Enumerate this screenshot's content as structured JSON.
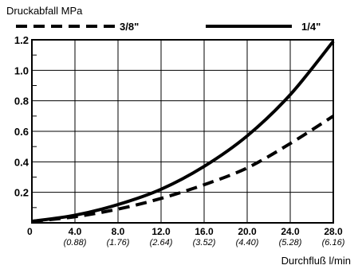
{
  "chart_data": {
    "type": "line",
    "ylabel": "Druckabfall MPa",
    "xlabel": "Durchfluß l/min",
    "xlim": [
      0,
      28
    ],
    "ylim": [
      0,
      1.2
    ],
    "x_ticks": [
      0,
      4,
      8,
      12,
      16,
      20,
      24,
      28
    ],
    "x_tick_labels": [
      "0",
      "4.0",
      "8.0",
      "12.0",
      "16.0",
      "20.0",
      "24.0",
      "28.0"
    ],
    "x_tick_sublabels": [
      "",
      "(0.88)",
      "(1.76)",
      "(2.64)",
      "(3.52)",
      "(4.40)",
      "(5.28)",
      "(6.16)"
    ],
    "y_ticks": [
      0.2,
      0.4,
      0.6,
      0.8,
      1.0,
      1.2
    ],
    "y_tick_labels": [
      "0.2",
      "0.4",
      "0.6",
      "0.8",
      "1.0",
      "1.2"
    ],
    "grid": true,
    "legend_position": "top",
    "series": [
      {
        "name": "3/8\"",
        "style": "dashed",
        "x": [
          0,
          4,
          8,
          12,
          16,
          20,
          24,
          28
        ],
        "y": [
          0.01,
          0.04,
          0.09,
          0.16,
          0.25,
          0.36,
          0.52,
          0.7
        ]
      },
      {
        "name": "1/4\"",
        "style": "solid",
        "x": [
          0,
          4,
          8,
          12,
          16,
          20,
          24,
          28
        ],
        "y": [
          0.01,
          0.05,
          0.12,
          0.22,
          0.37,
          0.57,
          0.84,
          1.19
        ]
      }
    ]
  }
}
